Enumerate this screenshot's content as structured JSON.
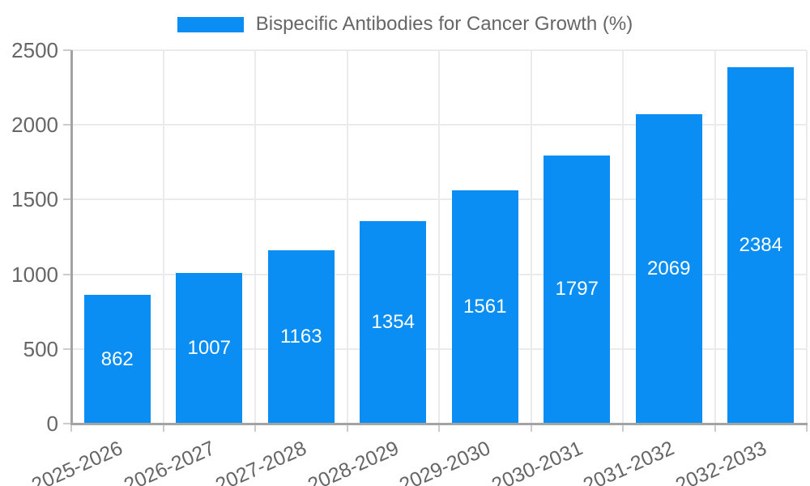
{
  "chart_data": {
    "type": "bar",
    "title": "Bispecific Antibodies for Cancer Growth (%)",
    "categories": [
      "2025-2026",
      "2026-2027",
      "2027-2028",
      "2028-2029",
      "2029-2030",
      "2030-2031",
      "2031-2032",
      "2032-2033"
    ],
    "values": [
      862,
      1007,
      1163,
      1354,
      1561,
      1797,
      2069,
      2384
    ],
    "xlabel": "",
    "ylabel": "",
    "ylim": [
      0,
      2500
    ],
    "yticks": [
      0,
      500,
      1000,
      1500,
      2000,
      2500
    ],
    "grid": true,
    "legend_position": "top",
    "x_label_rotation_deg": -24,
    "colors": {
      "bar": "#0a8ef4",
      "value_label": "#ffffff",
      "tick_label": "#666666",
      "gridline": "#ebebeb",
      "axis_line": "#a3a3a3",
      "tick_mark": "#cccccc",
      "background": "#ffffff"
    }
  }
}
